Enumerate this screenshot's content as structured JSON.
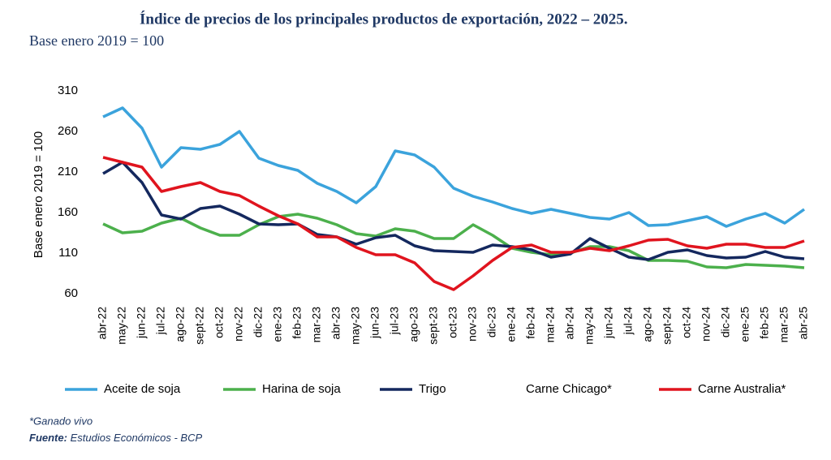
{
  "chart_data": {
    "type": "line",
    "title": "Índice de precios de los principales productos de exportación, 2022 – 2025.",
    "subtitle": "Base enero 2019 = 100",
    "y_label": "Base enero 2019 = 100",
    "categories": [
      "abr-22",
      "may-22",
      "jun-22",
      "jul-22",
      "ago-22",
      "sept-22",
      "oct-22",
      "nov-22",
      "dic-22",
      "ene-23",
      "feb-23",
      "mar-23",
      "abr-23",
      "may-23",
      "jun-23",
      "jul-23",
      "ago-23",
      "sept-23",
      "oct-23",
      "nov-23",
      "dic-23",
      "ene-24",
      "feb-24",
      "mar-24",
      "abr-24",
      "may-24",
      "jun-24",
      "jul-24",
      "ago-24",
      "sept-24",
      "oct-24",
      "nov-24",
      "dic-24",
      "ene-25",
      "feb-25",
      "mar-25",
      "abr-25"
    ],
    "ylim": [
      60,
      310
    ],
    "yticks": [
      60,
      110,
      160,
      210,
      260,
      310
    ],
    "grid": false,
    "series": [
      {
        "name": "Aceite de soja",
        "color": "#3ba3dc",
        "values": [
          278,
          289,
          264,
          216,
          240,
          238,
          244,
          260,
          227,
          218,
          212,
          196,
          186,
          172,
          192,
          236,
          231,
          216,
          190,
          180,
          173,
          165,
          159,
          164,
          159,
          154,
          152,
          160,
          144,
          145,
          150,
          155,
          143,
          152,
          159,
          147,
          164
        ]
      },
      {
        "name": "Harina de soja",
        "color": "#4cb04c",
        "values": [
          146,
          135,
          137,
          147,
          153,
          141,
          132,
          132,
          145,
          155,
          158,
          153,
          145,
          134,
          131,
          140,
          137,
          128,
          128,
          145,
          132,
          116,
          111,
          108,
          110,
          118,
          118,
          113,
          101,
          101,
          100,
          93,
          92,
          96,
          95,
          94,
          92
        ]
      },
      {
        "name": "Trigo",
        "color": "#14285e",
        "values": [
          208,
          222,
          197,
          157,
          152,
          165,
          168,
          158,
          146,
          145,
          146,
          133,
          130,
          121,
          129,
          132,
          119,
          113,
          112,
          111,
          120,
          118,
          114,
          105,
          109,
          128,
          116,
          105,
          102,
          111,
          114,
          107,
          104,
          105,
          112,
          105,
          103
        ]
      },
      {
        "name": "Carne Chicago*",
        "color": "#ffffff",
        "values": [
          null,
          null,
          null,
          null,
          null,
          null,
          null,
          null,
          null,
          null,
          null,
          null,
          null,
          null,
          null,
          null,
          null,
          null,
          null,
          null,
          null,
          null,
          null,
          null,
          null,
          null,
          null,
          null,
          null,
          null,
          null,
          null,
          null,
          null,
          null,
          null,
          null
        ]
      },
      {
        "name": "Carne Australia*",
        "color": "#e0141e",
        "values": [
          228,
          222,
          216,
          186,
          192,
          197,
          186,
          181,
          168,
          156,
          146,
          130,
          130,
          117,
          108,
          108,
          98,
          75,
          65,
          82,
          101,
          117,
          120,
          111,
          111,
          116,
          113,
          119,
          126,
          127,
          119,
          116,
          121,
          121,
          117,
          117,
          125
        ]
      }
    ],
    "note": "*Ganado vivo",
    "source_label": "Fuente:",
    "source": "Estudios Económicos - BCP"
  }
}
